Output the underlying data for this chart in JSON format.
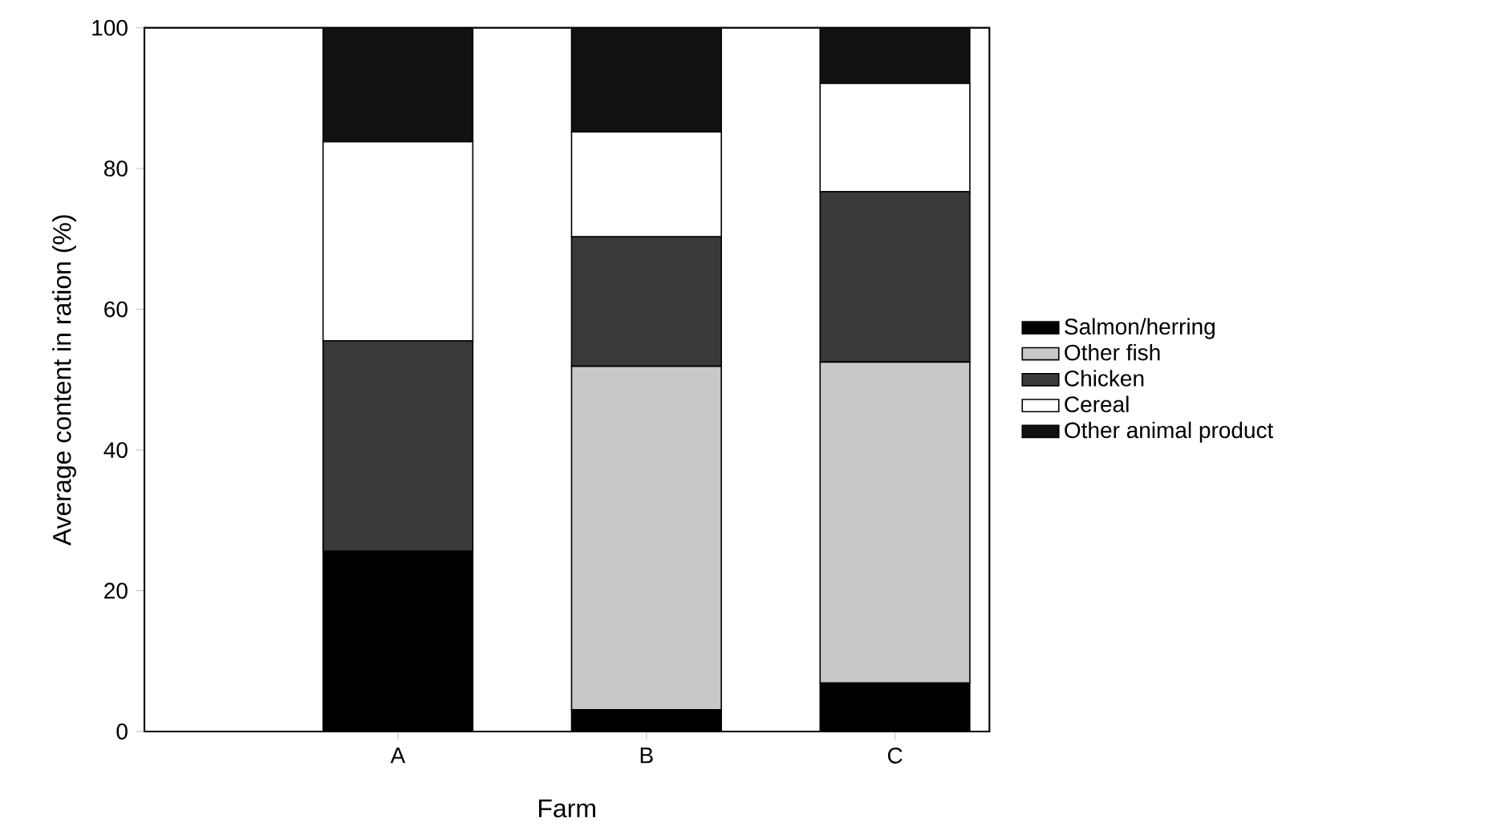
{
  "chart_data": {
    "type": "bar",
    "stacked": true,
    "xlabel": "Farm",
    "ylabel": "Average content in ration (%)",
    "categories": [
      "A",
      "B",
      "C"
    ],
    "series": [
      {
        "name": "Salmon/herring",
        "color": "#000000",
        "values": [
          25.6,
          3.1,
          6.9
        ]
      },
      {
        "name": "Other fish",
        "color": "#c8c8c8",
        "values": [
          0,
          48.8,
          45.6
        ]
      },
      {
        "name": "Chicken",
        "color": "#3a3a3a",
        "values": [
          29.9,
          18.4,
          24.2
        ]
      },
      {
        "name": "Cereal",
        "color": "#ffffff",
        "values": [
          28.3,
          14.9,
          15.4
        ]
      },
      {
        "name": "Other animal product",
        "color": "#111111",
        "values": [
          16.2,
          14.8,
          7.9
        ]
      }
    ],
    "ylim": [
      0,
      100
    ],
    "yticks": [
      0,
      20,
      40,
      60,
      80,
      100
    ],
    "grid": false,
    "legend": "right"
  }
}
